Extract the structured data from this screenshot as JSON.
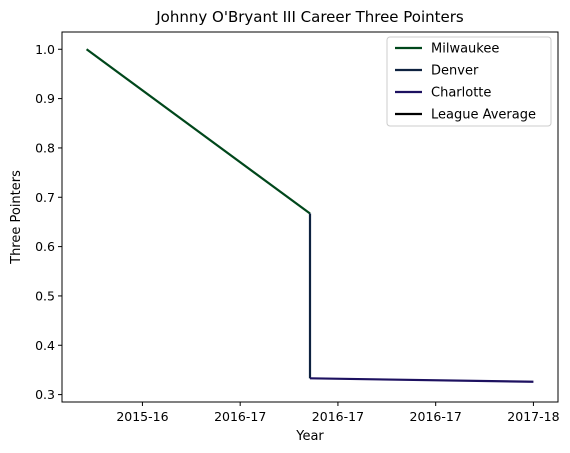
{
  "chart_data": {
    "type": "line",
    "title": "Johnny O'Bryant III Career Three Pointers",
    "xlabel": "Year",
    "ylabel": "Three Pointers",
    "x_tick_labels": [
      "2015-16",
      "2016-17",
      "2016-17",
      "2016-17",
      "2017-18"
    ],
    "ylim": [
      0.3,
      1.0
    ],
    "y_ticks": [
      0.3,
      0.4,
      0.5,
      0.6,
      0.7,
      0.8,
      0.9,
      1.0
    ],
    "y_tick_labels": [
      "0.3",
      "0.4",
      "0.5",
      "0.6",
      "0.7",
      "0.8",
      "0.9",
      "1.0"
    ],
    "grid": false,
    "legend_position": "top-right",
    "series": [
      {
        "name": "Milwaukee",
        "color": "#00471B",
        "x": [
          0.0,
          1.0
        ],
        "values": [
          1.0,
          0.667
        ]
      },
      {
        "name": "Denver",
        "color": "#0E2240",
        "x": [
          1.0,
          1.0
        ],
        "values": [
          0.667,
          0.333
        ]
      },
      {
        "name": "Charlotte",
        "color": "#1D1160",
        "x": [
          1.0,
          2.0
        ],
        "values": [
          0.333,
          0.326
        ]
      },
      {
        "name": "League Average",
        "color": "#000000",
        "x": [],
        "values": []
      }
    ]
  }
}
